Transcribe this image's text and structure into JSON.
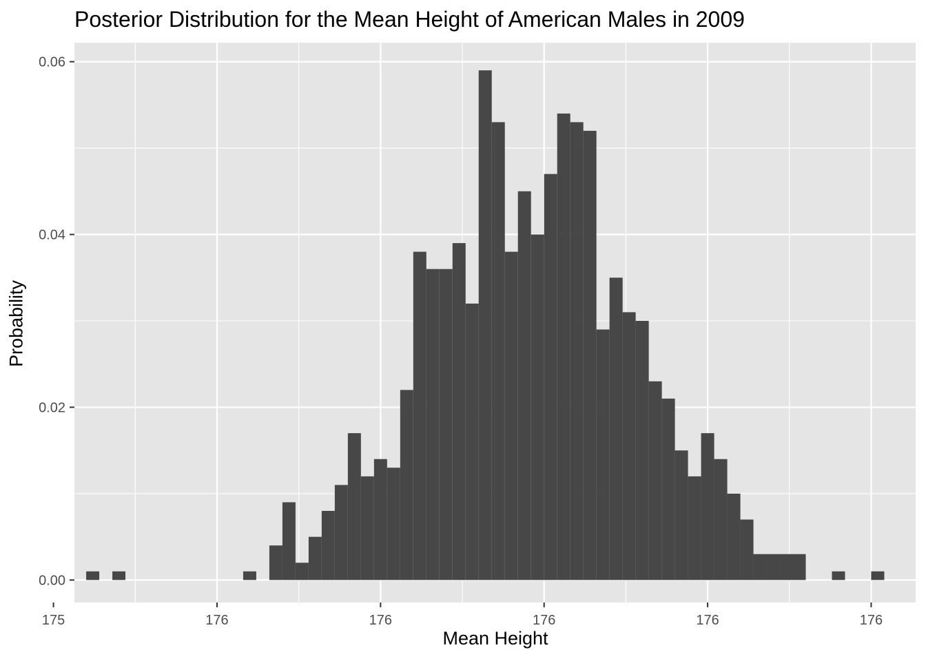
{
  "chart_data": {
    "type": "bar",
    "title": "Posterior Distribution for the Mean Height of American Males in 2009",
    "xlabel": "Mean Height",
    "ylabel": "Probability",
    "x_tick_labels": [
      "175",
      "176",
      "176",
      "176",
      "176",
      "176"
    ],
    "y_tick_labels": [
      "0.00",
      "0.02",
      "0.04",
      "0.06"
    ],
    "ylim": [
      -0.0026,
      0.0622
    ],
    "y_ticks": [
      0,
      0.02,
      0.04,
      0.06
    ],
    "bar_fill": "#474747",
    "panel_background": "#e5e5e5",
    "grid_color": "#ffffff",
    "grid": true,
    "bin_index_range": [
      -0.9,
      63.4
    ],
    "x_tick_bins": [
      -2.5,
      10,
      22.5,
      35,
      47.5,
      60
    ],
    "values": [
      0.001,
      0,
      0.001,
      0,
      0,
      0,
      0,
      0,
      0,
      0,
      0,
      0,
      0.001,
      0,
      0.004,
      0.009,
      0.002,
      0.005,
      0.008,
      0.011,
      0.017,
      0.012,
      0.014,
      0.013,
      0.022,
      0.038,
      0.036,
      0.036,
      0.039,
      0.032,
      0.059,
      0.053,
      0.038,
      0.045,
      0.04,
      0.047,
      0.054,
      0.053,
      0.052,
      0.029,
      0.035,
      0.031,
      0.03,
      0.023,
      0.021,
      0.015,
      0.012,
      0.017,
      0.014,
      0.01,
      0.007,
      0.003,
      0.003,
      0.003,
      0.003,
      0,
      0,
      0.001,
      0,
      0,
      0.001
    ]
  }
}
